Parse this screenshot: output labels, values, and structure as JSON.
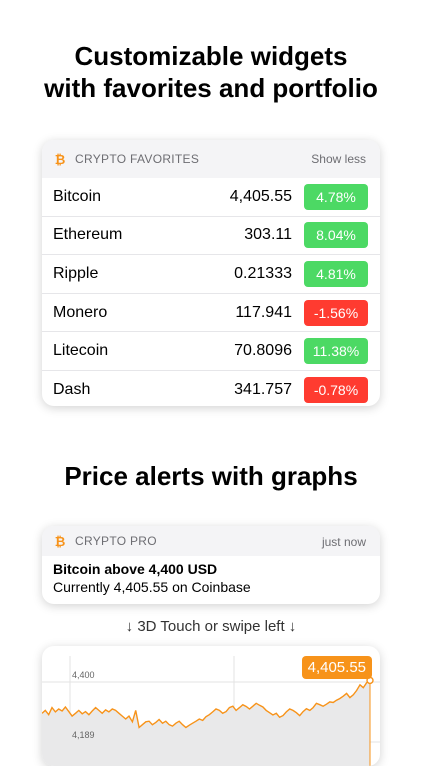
{
  "headline_top": {
    "line1": "Customizable widgets",
    "line2": "with favorites and portfolio"
  },
  "favorites_widget": {
    "title": "CRYPTO  FAVORITES",
    "action": "Show less",
    "icon": "bitcoin-icon",
    "rows": [
      {
        "name": "Bitcoin",
        "price": "4,405.55",
        "change": "4.78%",
        "direction": "up"
      },
      {
        "name": "Ethereum",
        "price": "303.11",
        "change": "8.04%",
        "direction": "up"
      },
      {
        "name": "Ripple",
        "price": "0.21333",
        "change": "4.81%",
        "direction": "up"
      },
      {
        "name": "Monero",
        "price": "117.941",
        "change": "-1.56%",
        "direction": "down"
      },
      {
        "name": "Litecoin",
        "price": "70.8096",
        "change": "11.38%",
        "direction": "up"
      },
      {
        "name": "Dash",
        "price": "341.757",
        "change": "-0.78%",
        "direction": "down"
      }
    ]
  },
  "headline_middle": "Price alerts with graphs",
  "notification": {
    "app": "CRYPTO PRO",
    "time": "just now",
    "title": "Bitcoin above 4,400 USD",
    "body": "Currently 4,405.55 on Coinbase"
  },
  "hint": "↓ 3D Touch or swipe left ↓",
  "colors": {
    "accent": "#f7931a",
    "up": "#4cd964",
    "down": "#ff3b30"
  },
  "chart_data": {
    "type": "line",
    "series": [
      {
        "values": [
          4290,
          4300,
          4285,
          4310,
          4295,
          4305,
          4298,
          4312,
          4296,
          4280,
          4290,
          4300,
          4288,
          4296,
          4285,
          4298,
          4310,
          4300,
          4290,
          4302,
          4295,
          4305,
          4300,
          4290,
          4280,
          4270,
          4280,
          4260,
          4300,
          4240,
          4250,
          4260,
          4262,
          4250,
          4258,
          4268,
          4255,
          4262,
          4250,
          4245,
          4255,
          4262,
          4250,
          4240,
          4248,
          4255,
          4262,
          4270,
          4265,
          4278,
          4285,
          4295,
          4305,
          4300,
          4290,
          4296,
          4310,
          4315,
          4300,
          4310,
          4320,
          4314,
          4305,
          4315,
          4325,
          4318,
          4312,
          4300,
          4292,
          4284,
          4290,
          4276,
          4282,
          4295,
          4305,
          4300,
          4292,
          4282,
          4296,
          4306,
          4300,
          4310,
          4325,
          4320,
          4315,
          4322,
          4330,
          4328,
          4336,
          4342,
          4350,
          4360,
          4345,
          4355,
          4370,
          4390,
          4380,
          4398,
          4405.55
        ]
      }
    ],
    "tick_labels": [
      "4,400",
      "4,189"
    ],
    "ylim": [
      4180,
      4410
    ],
    "last_value_label": "4,405.55",
    "grid": true
  }
}
